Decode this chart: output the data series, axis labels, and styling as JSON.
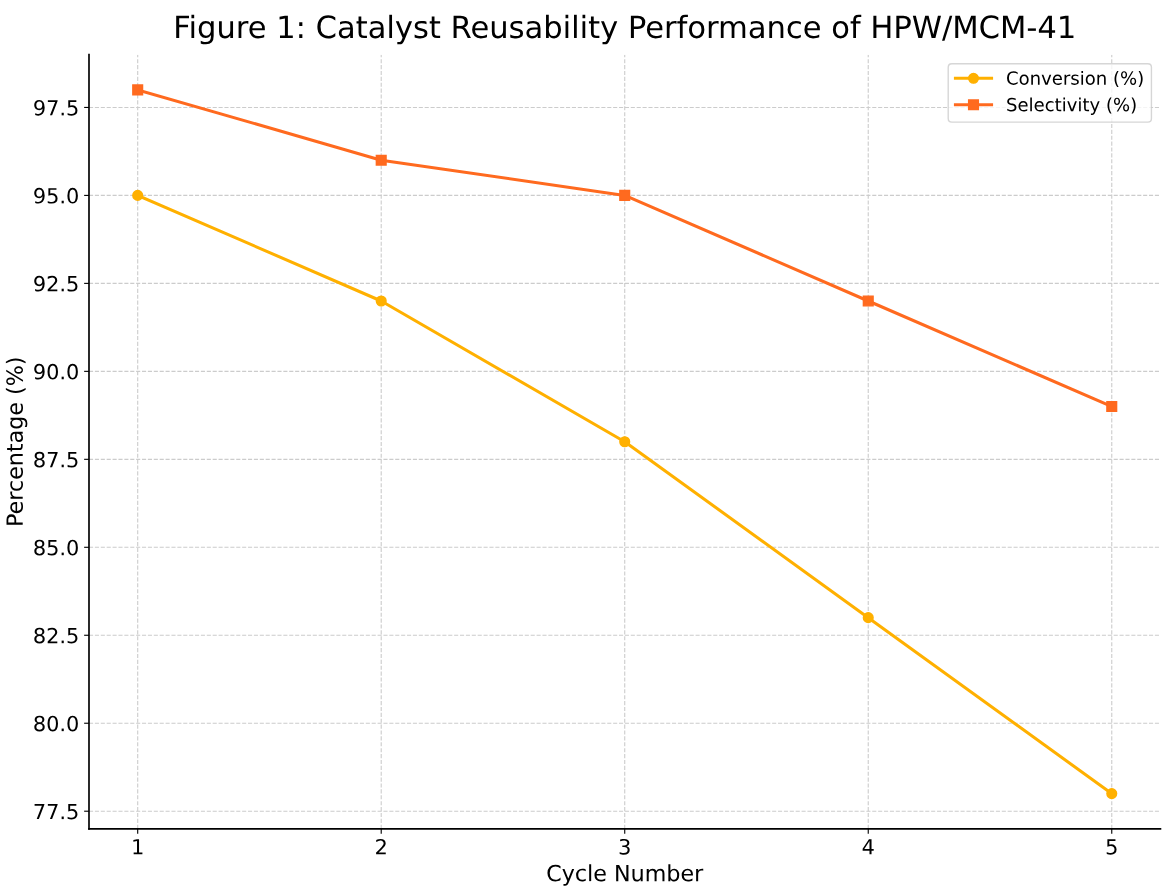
{
  "chart_data": {
    "type": "line",
    "title": "Figure 1: Catalyst Reusability Performance of HPW/MCM-41",
    "xlabel": "Cycle Number",
    "ylabel": "Percentage (%)",
    "x": [
      1,
      2,
      3,
      4,
      5
    ],
    "series": [
      {
        "name": "Conversion (%)",
        "color": "#ffb000",
        "marker": "circle",
        "values": [
          95,
          92,
          88,
          83,
          78
        ]
      },
      {
        "name": "Selectivity (%)",
        "color": "#ff6a1f",
        "marker": "square",
        "values": [
          98,
          96,
          95,
          92,
          89
        ]
      }
    ],
    "xlim": [
      0.8,
      5.2
    ],
    "xticks": [
      1,
      2,
      3,
      4,
      5
    ],
    "ylim": [
      77.0,
      99.0
    ],
    "yticks": [
      {
        "value": 77.5,
        "label": "77.5"
      },
      {
        "value": 80,
        "label": "80.0"
      },
      {
        "value": 82.5,
        "label": "82.5"
      },
      {
        "value": 85,
        "label": "85.0"
      },
      {
        "value": 87.5,
        "label": "87.5"
      },
      {
        "value": 90,
        "label": "90.0"
      },
      {
        "value": 92.5,
        "label": "92.5"
      },
      {
        "value": 95,
        "label": "95.0"
      },
      {
        "value": 97.5,
        "label": "97.5"
      }
    ],
    "grid": true,
    "legend": "top right",
    "line_style": "solid"
  }
}
